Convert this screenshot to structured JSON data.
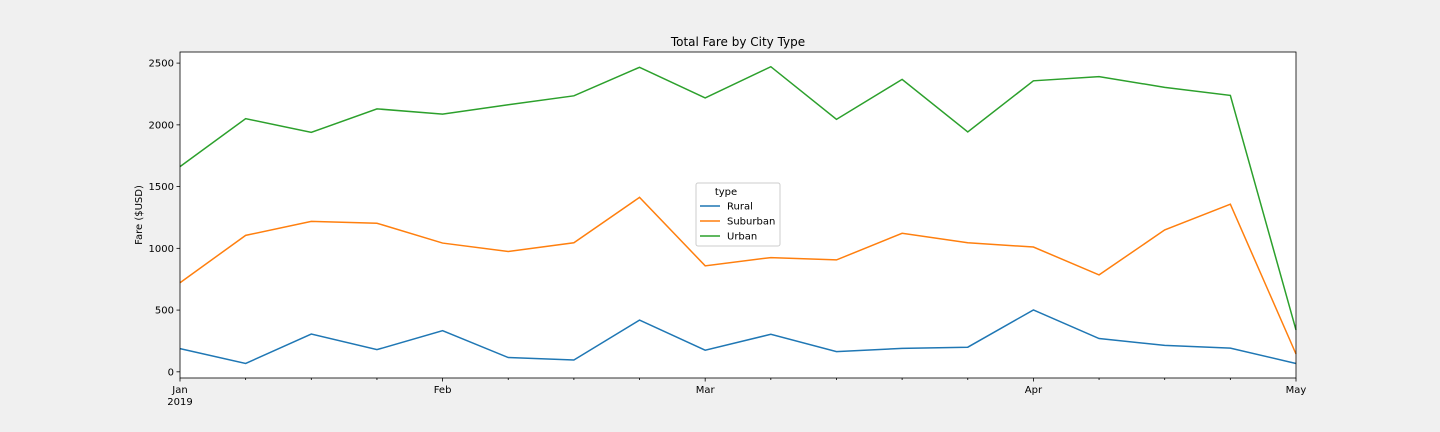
{
  "chart_data": {
    "type": "line",
    "title": "Total Fare by City Type",
    "xlabel": "",
    "ylabel": "Fare ($USD)",
    "x": [
      "2019-01-06",
      "2019-01-13",
      "2019-01-20",
      "2019-01-27",
      "2019-02-03",
      "2019-02-10",
      "2019-02-17",
      "2019-02-24",
      "2019-03-03",
      "2019-03-10",
      "2019-03-17",
      "2019-03-24",
      "2019-03-31",
      "2019-04-07",
      "2019-04-14",
      "2019-04-21",
      "2019-04-28",
      "2019-05-05"
    ],
    "ylim": [
      -50,
      2590
    ],
    "yticks": [
      0,
      500,
      1000,
      1500,
      2000,
      2500
    ],
    "xticks_major": [
      {
        "date": "2019-01-06",
        "label": "Jan",
        "sublabel": "2019"
      },
      {
        "date": "2019-02-03",
        "label": "Feb",
        "sublabel": ""
      },
      {
        "date": "2019-03-03",
        "label": "Mar",
        "sublabel": ""
      },
      {
        "date": "2019-04-07",
        "label": "Apr",
        "sublabel": ""
      },
      {
        "date": "2019-05-05",
        "label": "May",
        "sublabel": ""
      }
    ],
    "legend": {
      "title": "type",
      "placement": "center"
    },
    "grid": false,
    "series": [
      {
        "name": "Rural",
        "color": "#1f77b4",
        "values": [
          187.92,
          67.65,
          306.0,
          179.69,
          333.08,
          115.8,
          95.82,
          419.06,
          175.14,
          303.94,
          163.39,
          189.76,
          199.42,
          501.24,
          269.79,
          214.14,
          191.85,
          67.6
        ]
      },
      {
        "name": "Suburban",
        "color": "#ff7f0e",
        "values": [
          721.6,
          1105.13,
          1218.2,
          1203.28,
          1042.79,
          974.34,
          1045.5,
          1412.74,
          858.46,
          925.27,
          906.2,
          1122.2,
          1045.06,
          1010.73,
          784.82,
          1149.27,
          1357.75,
          144.34
        ]
      },
      {
        "name": "Urban",
        "color": "#2ca02c",
        "values": [
          1661.68,
          2050.43,
          1939.02,
          2129.51,
          2086.94,
          2162.64,
          2235.07,
          2466.29,
          2218.2,
          2470.93,
          2044.42,
          2368.37,
          1942.77,
          2356.7,
          2390.72,
          2303.8,
          2238.29,
          339.64
        ]
      }
    ]
  }
}
